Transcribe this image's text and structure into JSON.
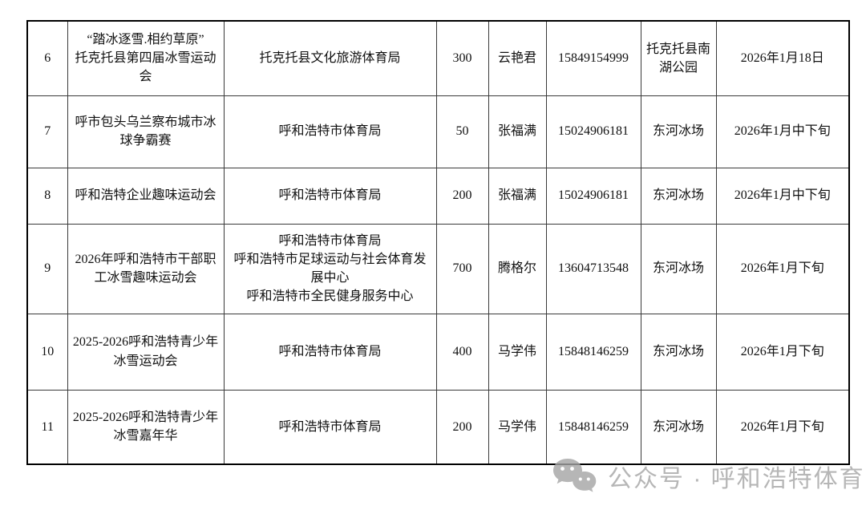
{
  "table": {
    "columns": [
      "serial",
      "event",
      "organizer",
      "quantity",
      "contact",
      "phone",
      "venue",
      "date"
    ],
    "rows": [
      {
        "serial": "6",
        "event": "“踏冰逐雪.相约草原”\n托克托县第四届冰雪运动会",
        "organizer": "托克托县文化旅游体育局",
        "quantity": "300",
        "contact": "云艳君",
        "phone": "15849154999",
        "venue": "托克托县南湖公园",
        "date": "2026年1月18日"
      },
      {
        "serial": "7",
        "event": "呼市包头乌兰察布城市冰球争霸赛",
        "organizer": "呼和浩特市体育局",
        "quantity": "50",
        "contact": "张福满",
        "phone": "15024906181",
        "venue": "东河冰场",
        "date": "2026年1月中下旬"
      },
      {
        "serial": "8",
        "event": "呼和浩特企业趣味运动会",
        "organizer": "呼和浩特市体育局",
        "quantity": "200",
        "contact": "张福满",
        "phone": "15024906181",
        "venue": "东河冰场",
        "date": "2026年1月中下旬"
      },
      {
        "serial": "9",
        "event": "2026年呼和浩特市干部职工冰雪趣味运动会",
        "organizer": "呼和浩特市体育局\n呼和浩特市足球运动与社会体育发展中心\n呼和浩特市全民健身服务中心",
        "quantity": "700",
        "contact": "腾格尔",
        "phone": "13604713548",
        "venue": "东河冰场",
        "date": "2026年1月下旬"
      },
      {
        "serial": "10",
        "event": "2025-2026呼和浩特青少年冰雪运动会",
        "organizer": "呼和浩特市体育局",
        "quantity": "400",
        "contact": "马学伟",
        "phone": "15848146259",
        "venue": "东河冰场",
        "date": "2026年1月下旬"
      },
      {
        "serial": "11",
        "event": "2025-2026呼和浩特青少年冰雪嘉年华",
        "organizer": "呼和浩特市体育局",
        "quantity": "200",
        "contact": "马学伟",
        "phone": "15848146259",
        "venue": "东河冰场",
        "date": "2026年1月下旬"
      }
    ]
  },
  "watermark": {
    "icon": "wechat-icon",
    "text": "公众号 · 呼和浩特体育",
    "color": "#a5a5a5"
  }
}
